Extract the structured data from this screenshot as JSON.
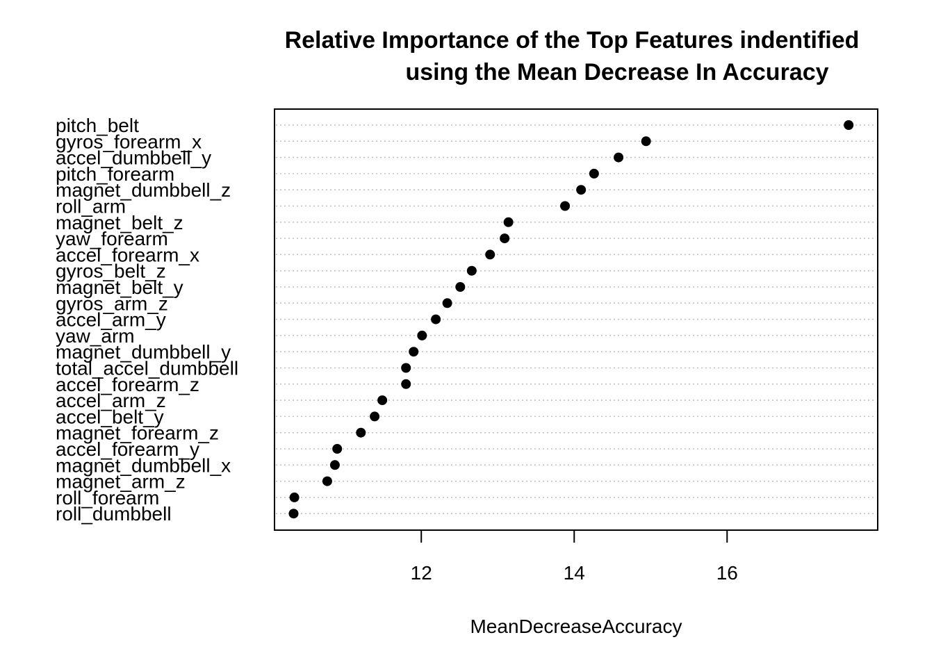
{
  "chart_data": {
    "type": "scatter",
    "title": "Relative Importance of the Top Features indentified",
    "subtitle": "using the Mean Decrease In Accuracy",
    "xlabel": "MeanDecreaseAccuracy",
    "ylabel": "",
    "xlim": [
      10.08,
      17.97
    ],
    "xticks": [
      12,
      14,
      16
    ],
    "xtick_labels": [
      "12",
      "14",
      "16"
    ],
    "grid": "dotted horizontal",
    "marker_color": "#000000",
    "grid_color": "#bebebe",
    "categories": [
      "pitch_belt",
      "gyros_forearm_x",
      "accel_dumbbell_y",
      "pitch_forearm",
      "magnet_dumbbell_z",
      "roll_arm",
      "magnet_belt_z",
      "yaw_forearm",
      "accel_forearm_x",
      "gyros_belt_z",
      "magnet_belt_y",
      "gyros_arm_z",
      "accel_arm_y",
      "yaw_arm",
      "magnet_dumbbell_y",
      "total_accel_dumbbell",
      "accel_forearm_z",
      "accel_arm_z",
      "accel_belt_y",
      "magnet_forearm_z",
      "accel_forearm_y",
      "magnet_dumbbell_x",
      "magnet_arm_z",
      "roll_forearm",
      "roll_dumbbell"
    ],
    "values": [
      17.59,
      14.94,
      14.58,
      14.26,
      14.09,
      13.88,
      13.14,
      13.09,
      12.9,
      12.66,
      12.51,
      12.34,
      12.19,
      12.01,
      11.9,
      11.8,
      11.8,
      11.49,
      11.39,
      11.21,
      10.9,
      10.87,
      10.77,
      10.34,
      10.33
    ]
  }
}
